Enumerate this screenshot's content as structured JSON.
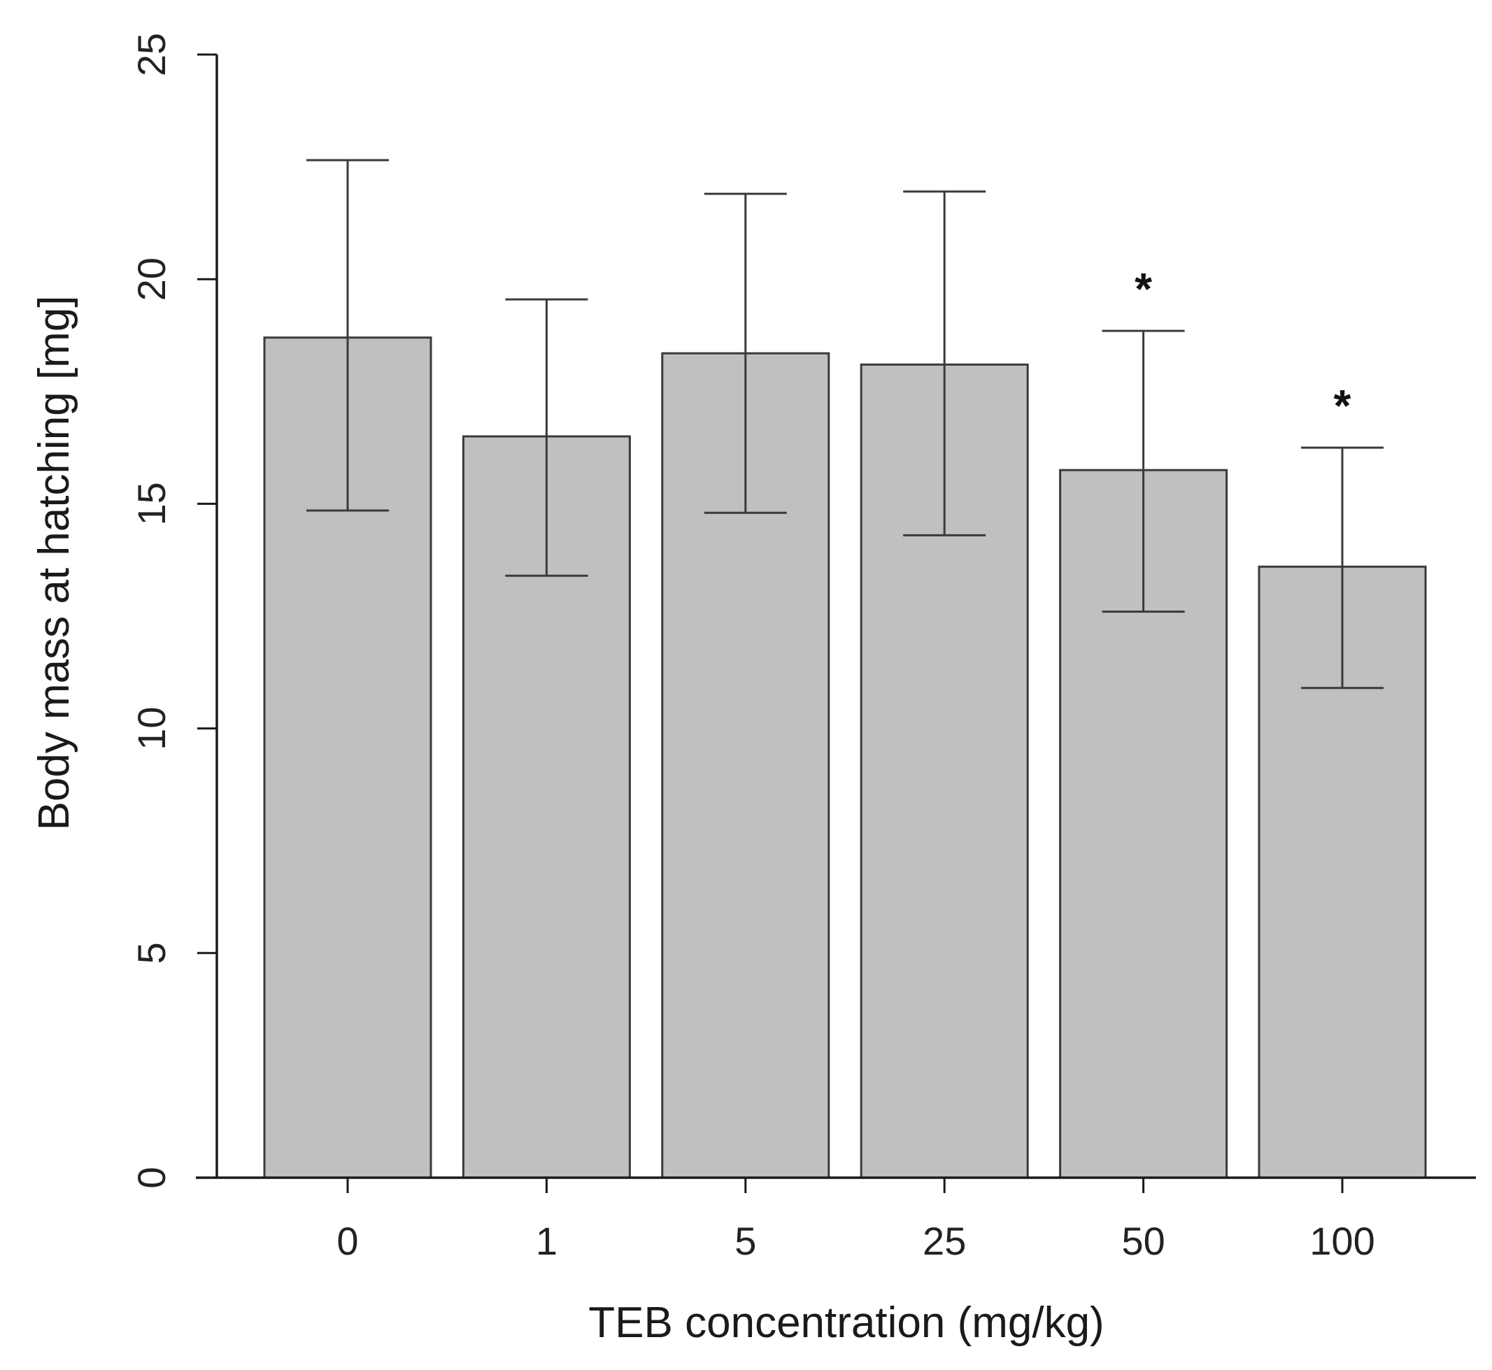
{
  "chart_data": {
    "type": "bar",
    "title": "",
    "xlabel": "TEB concentration (mg/kg)",
    "ylabel": "Body mass at hatching [mg]",
    "ylim": [
      0,
      25
    ],
    "yticks": [
      "0",
      "5",
      "10",
      "15",
      "20",
      "25"
    ],
    "categories": [
      "0",
      "1",
      "5",
      "25",
      "50",
      "100"
    ],
    "series": [
      {
        "name": "Body mass at hatching",
        "values": [
          18.7,
          16.5,
          18.35,
          18.1,
          15.75,
          13.6
        ],
        "error_upper": [
          22.65,
          19.55,
          21.9,
          21.95,
          18.85,
          16.25
        ],
        "error_lower": [
          14.85,
          13.4,
          14.8,
          14.3,
          12.6,
          10.9
        ],
        "significance": [
          "",
          "",
          "",
          "",
          "*",
          "*"
        ]
      }
    ],
    "colors": {
      "bar_fill": "#c0c0c0",
      "bar_stroke": "#3a3a3a",
      "axis": "#1a1a1a",
      "error_bar": "#3a3a3a"
    }
  }
}
